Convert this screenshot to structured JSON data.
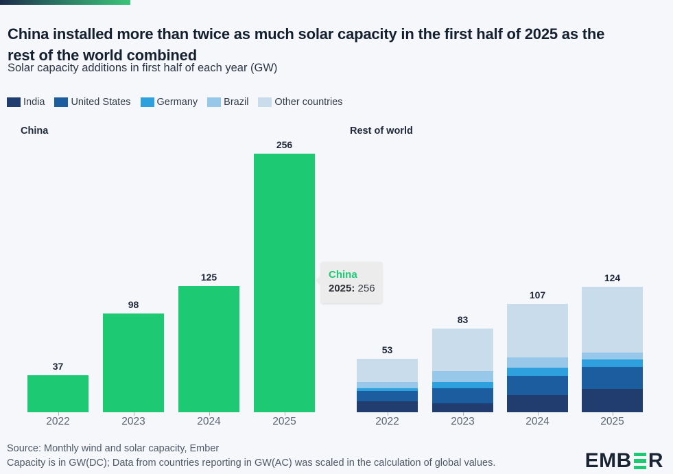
{
  "header": {
    "title": "China installed more than twice as much solar capacity in the first half of 2025 as the rest of the world combined",
    "subtitle": "Solar capacity additions in first half of each year (GW)"
  },
  "colors": {
    "background": "#f5f7fa",
    "accent_green": "#1ec973",
    "india": "#213c6e",
    "united_states": "#1c5da0",
    "germany": "#2fa0de",
    "brazil": "#97c8e9",
    "other_countries": "#c9dcec"
  },
  "legend": {
    "items": [
      {
        "label": "India",
        "color": "#213c6e"
      },
      {
        "label": "United States",
        "color": "#1c5da0"
      },
      {
        "label": "Germany",
        "color": "#2fa0de"
      },
      {
        "label": "Brazil",
        "color": "#97c8e9"
      },
      {
        "label": "Other countries",
        "color": "#c9dcec"
      }
    ]
  },
  "chart_data": [
    {
      "type": "bar",
      "title": "China",
      "categories": [
        "2022",
        "2023",
        "2024",
        "2025"
      ],
      "values": [
        37,
        98,
        125,
        256
      ],
      "bar_color": "#1ec973",
      "ylim": [
        0,
        280
      ],
      "grid": false,
      "value_labels_shown": true
    },
    {
      "type": "bar",
      "stacked": true,
      "title": "Rest of world",
      "categories": [
        "2022",
        "2023",
        "2024",
        "2025"
      ],
      "series": [
        {
          "name": "India",
          "color": "#213c6e",
          "values": [
            11,
            9,
            17,
            23
          ]
        },
        {
          "name": "United States",
          "color": "#1c5da0",
          "values": [
            10,
            15,
            19,
            22
          ]
        },
        {
          "name": "Germany",
          "color": "#2fa0de",
          "values": [
            3,
            6,
            8,
            7.5
          ]
        },
        {
          "name": "Brazil",
          "color": "#97c8e9",
          "values": [
            6,
            11,
            10,
            6.5
          ]
        },
        {
          "name": "Other countries",
          "color": "#c9dcec",
          "values": [
            23,
            42,
            53,
            65
          ]
        }
      ],
      "totals": [
        53,
        83,
        107,
        124
      ],
      "ylim": [
        0,
        280
      ],
      "grid": false,
      "value_labels_shown": true
    }
  ],
  "tooltip": {
    "series_label": "China",
    "year_label": "2025:",
    "value": "256"
  },
  "footer": {
    "line1": "Source: Monthly wind and solar capacity, Ember",
    "line2": "Capacity is in GW(DC); Data from countries reporting in GW(AC) was scaled in the calculation of global values.",
    "logo_prefix": "EMB",
    "logo_suffix": "R"
  }
}
